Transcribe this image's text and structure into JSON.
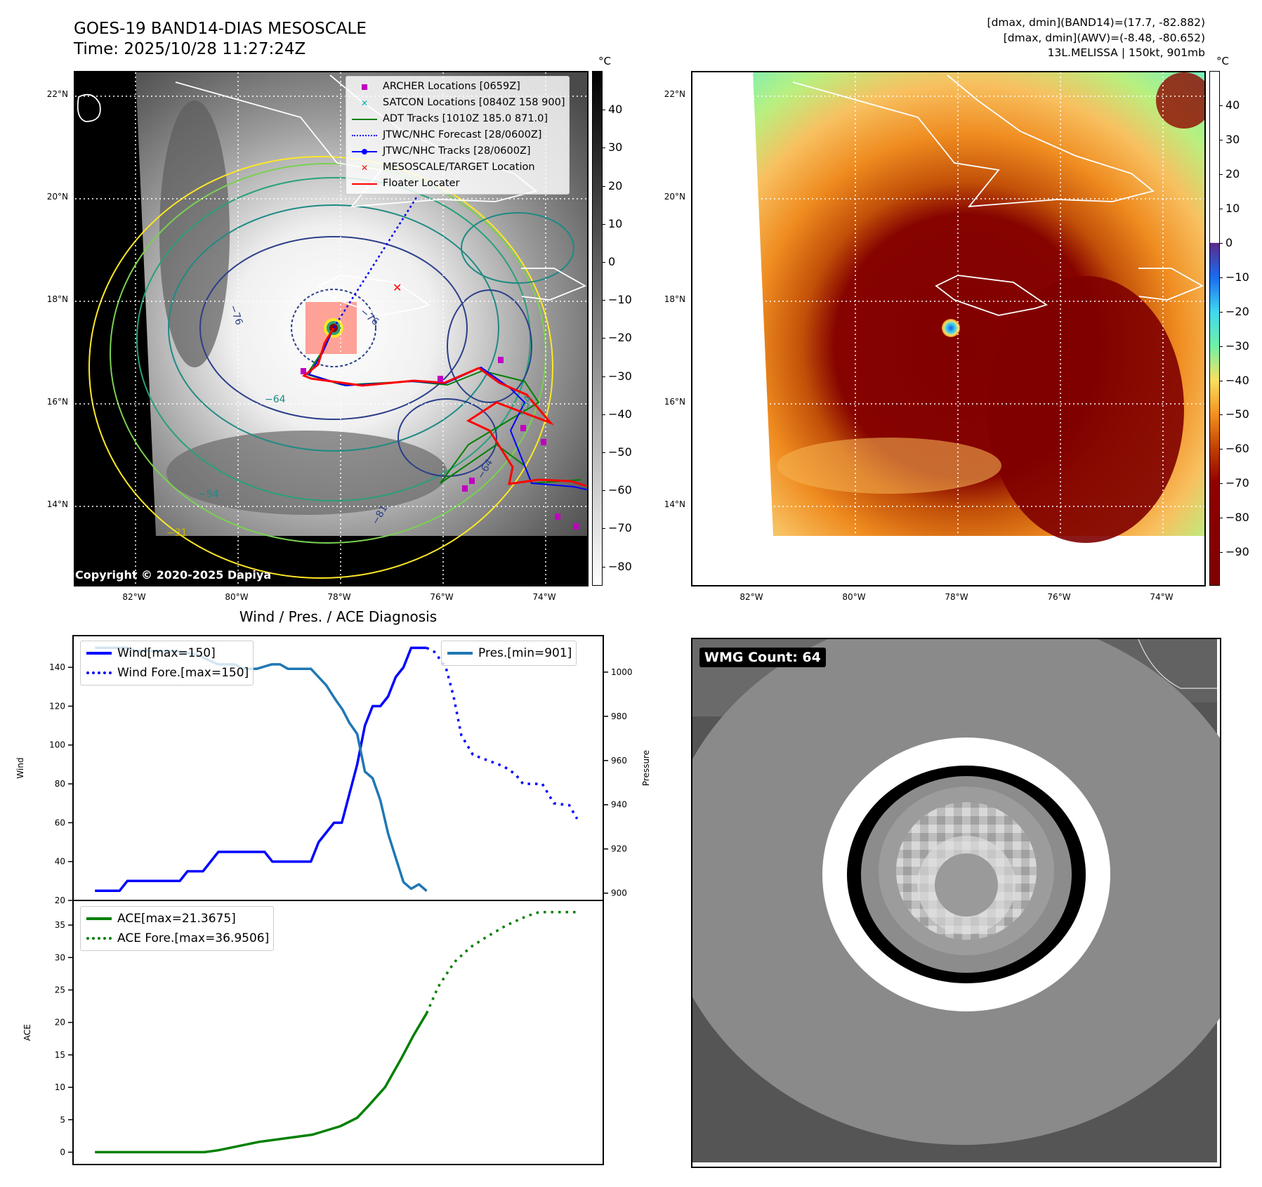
{
  "header": {
    "title": "GOES-19 BAND14-DIAS MESOSCALE",
    "time": "Time: 2025/10/28 11:27:24Z",
    "info_lines": [
      "[dmax, dmin](BAND14)=(17.7, -82.882)",
      "[dmax, dmin](AWV)=(-8.48, -80.652)",
      "13L.MELISSA | 150kt, 901mb"
    ]
  },
  "map": {
    "lat_labels": [
      "22°N",
      "20°N",
      "18°N",
      "16°N",
      "14°N"
    ],
    "lon_labels": [
      "82°W",
      "80°W",
      "78°W",
      "76°W",
      "74°W"
    ],
    "legend": [
      {
        "label": "ARCHER Locations [0659Z]",
        "symbol": "square",
        "color": "#c000c0"
      },
      {
        "label": "SATCON Locations [0840Z 158 900]",
        "symbol": "x",
        "color": "#00b0b0"
      },
      {
        "label": "ADT Tracks [1010Z 185.0 871.0]",
        "symbol": "line",
        "color": "#008000"
      },
      {
        "label": "JTWC/NHC Forecast [28/0600Z]",
        "symbol": "dotted",
        "color": "#0000ff"
      },
      {
        "label": "JTWC/NHC Tracks [28/0600Z]",
        "symbol": "line-dot",
        "color": "#0000ff"
      },
      {
        "label": "MESOSCALE/TARGET Location",
        "symbol": "x",
        "color": "#ff0000"
      },
      {
        "label": "Floater Locater",
        "symbol": "line",
        "color": "#ff0000"
      }
    ],
    "contour_labels": [
      "−76",
      "−76",
      "−64",
      "−54",
      "−81",
      "−64",
      "−54",
      "−31"
    ],
    "copyright": "Copyright © 2020-2025 Dapiya",
    "colorbar1": {
      "unit": "°C",
      "ticks": [
        "40",
        "30",
        "20",
        "10",
        "0",
        "−10",
        "−20",
        "−30",
        "−40",
        "−50",
        "−60",
        "−70",
        "−80"
      ]
    },
    "colorbar2": {
      "unit": "°C",
      "ticks": [
        "40",
        "30",
        "20",
        "10",
        "0",
        "−10",
        "−20",
        "−30",
        "−40",
        "−50",
        "−60",
        "−70",
        "−80",
        "−90"
      ]
    }
  },
  "wmg": {
    "label": "WMG Count: 64"
  },
  "chart_data": {
    "type": "line",
    "title": "Wind / Pres. / ACE Diagnosis",
    "xlim": [
      -2.84,
      65.9
    ],
    "wind_axis": {
      "label": "Wind",
      "ylim": [
        20,
        156.3
      ],
      "ticks": [
        20,
        40,
        60,
        80,
        100,
        120,
        140
      ]
    },
    "pres_axis": {
      "label": "Pressure",
      "ylim": [
        896.7,
        1016.5
      ],
      "ticks": [
        900,
        920,
        940,
        960,
        980,
        1000
      ]
    },
    "ace_axis": {
      "label": "ACE",
      "ylim": [
        -1.9,
        38.8
      ],
      "ticks": [
        0,
        5,
        10,
        15,
        20,
        25,
        30,
        35
      ]
    },
    "legends": {
      "wind": [
        "Wind[max=150]",
        "Wind Fore.[max=150]"
      ],
      "pres": [
        "Pres.[min=901]"
      ],
      "ace": [
        "ACE[max=21.3675]",
        "ACE Fore.[max=36.9506]"
      ]
    },
    "series": [
      {
        "name": "Wind[max=150]",
        "axis": "wind",
        "color": "#0000ff",
        "style": "solid",
        "x": [
          0,
          3.2,
          4.2,
          11,
          12,
          14,
          16,
          22,
          23,
          28,
          29,
          31,
          32,
          34,
          35,
          36,
          37,
          38,
          39,
          40,
          41,
          43
        ],
        "y": [
          25,
          25,
          30,
          30,
          35,
          35,
          45,
          45,
          40,
          40,
          50,
          60,
          60,
          90,
          110,
          120,
          120,
          125,
          135,
          140,
          150,
          150
        ]
      },
      {
        "name": "Wind Fore.[max=150]",
        "axis": "wind",
        "color": "#0000ff",
        "style": "dotted",
        "x": [
          43,
          44,
          45.5,
          46.5,
          47.5,
          49,
          51,
          53,
          54.5,
          55.5,
          58,
          59.5,
          61.5,
          62.5
        ],
        "y": [
          150,
          148,
          140,
          125,
          105,
          95,
          92,
          89,
          85,
          80,
          80,
          70,
          69,
          62
        ]
      },
      {
        "name": "Pres.[min=901]",
        "axis": "pres",
        "color": "#1f77b4",
        "style": "solid",
        "x": [
          0,
          4.2,
          5.3,
          10.3,
          13.2,
          15,
          16,
          18.1,
          19.2,
          21,
          22.9,
          24,
          25,
          28,
          30,
          31.1,
          32.1,
          33,
          34,
          35,
          36,
          37,
          38,
          39,
          40,
          41,
          42,
          43
        ],
        "y": [
          1011,
          1011,
          1009.5,
          1009.5,
          1008,
          1005,
          1003.5,
          1003.5,
          1001.5,
          1001.5,
          1003.5,
          1003.5,
          1001.5,
          1001.5,
          994,
          988,
          983,
          977,
          972,
          955,
          952,
          942,
          927,
          916,
          905,
          902,
          904,
          901
        ]
      },
      {
        "name": "ACE[max=21.3675]",
        "axis": "ace",
        "color": "#008000",
        "style": "solid",
        "x": [
          0,
          14.2,
          16,
          21.3,
          28.2,
          31.8,
          34,
          35.5,
          37.6,
          39.7,
          41.3,
          43
        ],
        "y": [
          0,
          0,
          0.3,
          1.6,
          2.7,
          4.0,
          5.3,
          7.2,
          10,
          14.4,
          18,
          21.4
        ]
      },
      {
        "name": "ACE Fore.[max=36.9506]",
        "axis": "ace",
        "color": "#008000",
        "style": "dotted",
        "x": [
          43,
          44.5,
          46.6,
          48.7,
          50.8,
          53.4,
          56,
          57.6,
          62.5
        ],
        "y": [
          21.4,
          25.5,
          29.3,
          31.6,
          33.2,
          35,
          36.4,
          37,
          37
        ]
      }
    ]
  }
}
